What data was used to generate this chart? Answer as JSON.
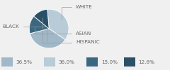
{
  "labels": [
    "WHITE",
    "BLACK",
    "ASIAN",
    "HISPANIC"
  ],
  "values": [
    36.0,
    36.5,
    15.0,
    12.6
  ],
  "colors": [
    "#b8ccd8",
    "#a0b8c8",
    "#3a6880",
    "#2a5068"
  ],
  "startangle": 95,
  "background_color": "#f0f0f0",
  "text_color": "#666666",
  "font_size": 5.2,
  "legend_colors": [
    "#a0b8c8",
    "#b8ccd8",
    "#3a6880",
    "#2a5068"
  ],
  "legend_labels": [
    "36.5%",
    "36.0%",
    "15.0%",
    "12.6%"
  ]
}
